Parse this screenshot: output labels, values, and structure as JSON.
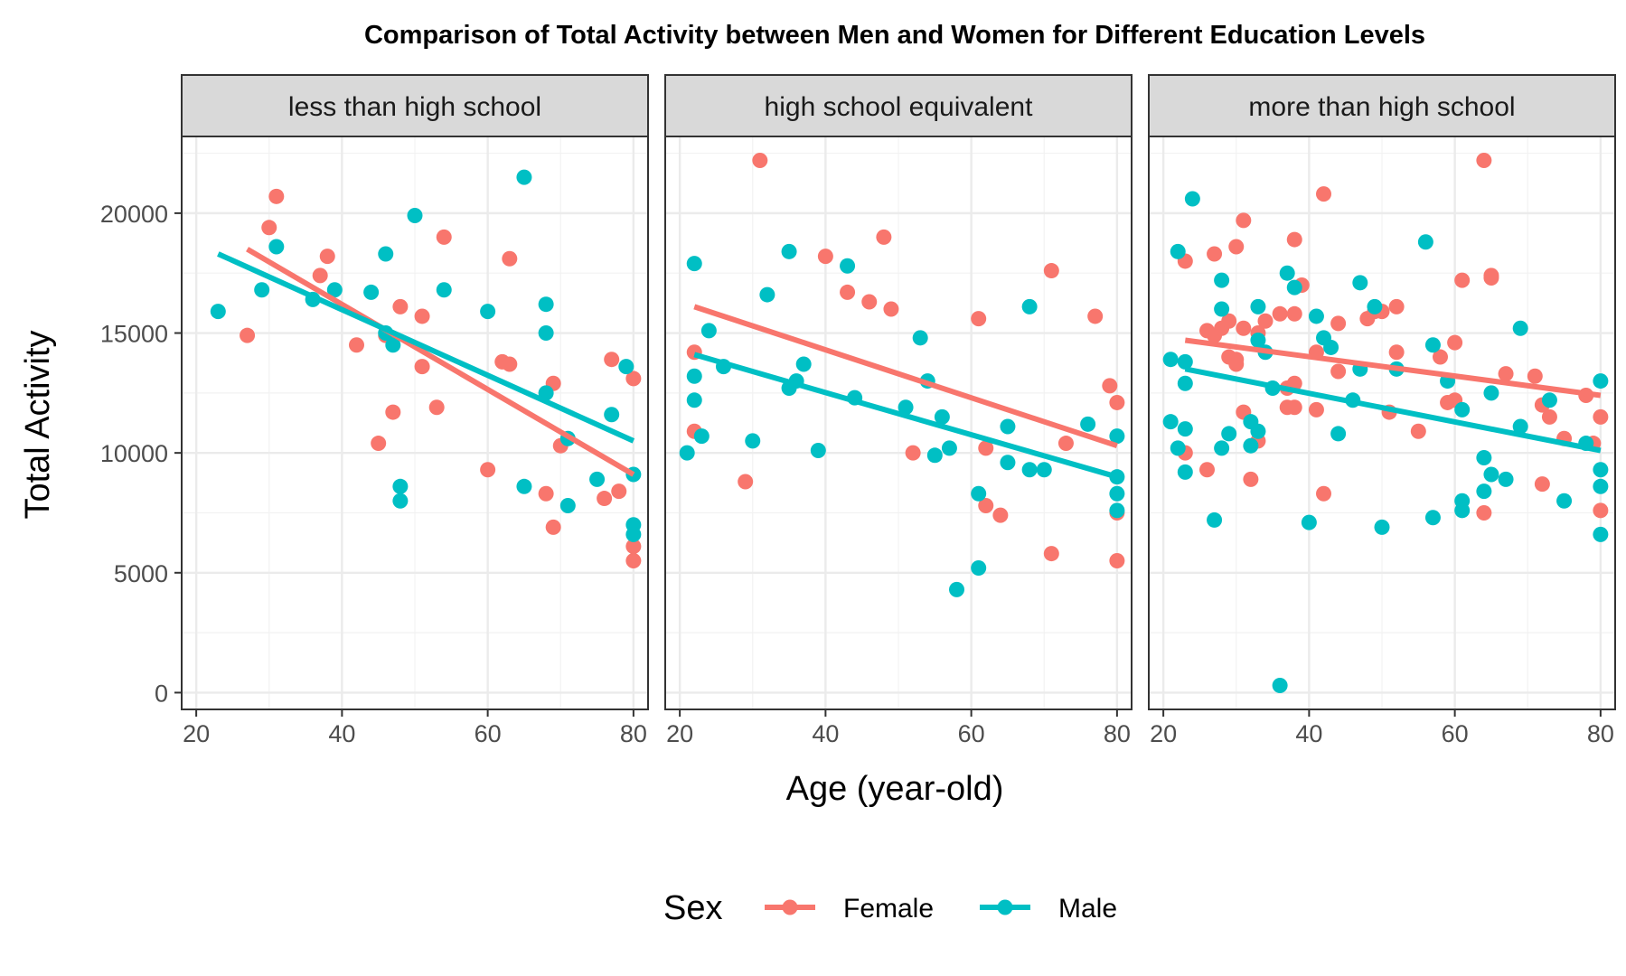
{
  "chart_data": {
    "type": "scatter",
    "title": "Comparison of Total Activity between Men and Women for Different Education Levels",
    "xlabel": "Age (year-old)",
    "ylabel": "Total Activity",
    "xlim": [
      18,
      82
    ],
    "ylim": [
      -700,
      23200
    ],
    "x_ticks": [
      20,
      40,
      60,
      80
    ],
    "y_ticks": [
      0,
      5000,
      10000,
      15000,
      20000
    ],
    "grid": true,
    "legend": {
      "title": "Sex",
      "position": "bottom",
      "entries": [
        {
          "name": "Female",
          "color": "#F8766D"
        },
        {
          "name": "Male",
          "color": "#00BFC4"
        }
      ]
    },
    "colors": {
      "Female": "#F8766D",
      "Male": "#00BFC4"
    },
    "panels": [
      {
        "label": "less than high school",
        "series": [
          {
            "name": "Female",
            "points": [
              [
                27,
                14900
              ],
              [
                30,
                19400
              ],
              [
                31,
                20700
              ],
              [
                37,
                17400
              ],
              [
                38,
                18200
              ],
              [
                42,
                14500
              ],
              [
                45,
                10400
              ],
              [
                46,
                14900
              ],
              [
                47,
                11700
              ],
              [
                48,
                16100
              ],
              [
                51,
                13600
              ],
              [
                51,
                15700
              ],
              [
                53,
                11900
              ],
              [
                54,
                19000
              ],
              [
                60,
                9300
              ],
              [
                62,
                13800
              ],
              [
                63,
                13700
              ],
              [
                63,
                18100
              ],
              [
                68,
                8300
              ],
              [
                69,
                12900
              ],
              [
                69,
                6900
              ],
              [
                70,
                10300
              ],
              [
                76,
                8100
              ],
              [
                77,
                13900
              ],
              [
                78,
                8400
              ],
              [
                80,
                13100
              ],
              [
                80,
                6100
              ],
              [
                80,
                5500
              ]
            ],
            "fit": [
              [
                27,
                18500
              ],
              [
                80,
                9100
              ]
            ]
          },
          {
            "name": "Male",
            "points": [
              [
                23,
                15900
              ],
              [
                29,
                16800
              ],
              [
                31,
                18600
              ],
              [
                36,
                16400
              ],
              [
                39,
                16800
              ],
              [
                44,
                16700
              ],
              [
                46,
                15000
              ],
              [
                46,
                18300
              ],
              [
                47,
                14500
              ],
              [
                48,
                8000
              ],
              [
                48,
                8600
              ],
              [
                50,
                19900
              ],
              [
                54,
                16800
              ],
              [
                60,
                15900
              ],
              [
                65,
                21500
              ],
              [
                65,
                8600
              ],
              [
                68,
                16200
              ],
              [
                68,
                15000
              ],
              [
                68,
                12500
              ],
              [
                71,
                10600
              ],
              [
                71,
                7800
              ],
              [
                75,
                8900
              ],
              [
                77,
                11600
              ],
              [
                79,
                13600
              ],
              [
                80,
                9100
              ],
              [
                80,
                7000
              ],
              [
                80,
                6600
              ]
            ],
            "fit": [
              [
                23,
                18300
              ],
              [
                80,
                10500
              ]
            ]
          }
        ]
      },
      {
        "label": "high school equivalent",
        "series": [
          {
            "name": "Female",
            "points": [
              [
                22,
                14200
              ],
              [
                22,
                10900
              ],
              [
                29,
                8800
              ],
              [
                31,
                22200
              ],
              [
                40,
                18200
              ],
              [
                43,
                16700
              ],
              [
                46,
                16300
              ],
              [
                48,
                19000
              ],
              [
                49,
                16000
              ],
              [
                52,
                10000
              ],
              [
                61,
                15600
              ],
              [
                62,
                10200
              ],
              [
                62,
                7800
              ],
              [
                64,
                7400
              ],
              [
                71,
                17600
              ],
              [
                71,
                5800
              ],
              [
                73,
                10400
              ],
              [
                77,
                15700
              ],
              [
                79,
                12800
              ],
              [
                80,
                12100
              ],
              [
                80,
                7500
              ],
              [
                80,
                5500
              ]
            ],
            "fit": [
              [
                22,
                16100
              ],
              [
                80,
                10300
              ]
            ]
          },
          {
            "name": "Male",
            "points": [
              [
                21,
                10000
              ],
              [
                22,
                17900
              ],
              [
                22,
                13200
              ],
              [
                22,
                12200
              ],
              [
                23,
                10700
              ],
              [
                24,
                15100
              ],
              [
                26,
                13600
              ],
              [
                30,
                10500
              ],
              [
                32,
                16600
              ],
              [
                35,
                18400
              ],
              [
                35,
                12700
              ],
              [
                36,
                13000
              ],
              [
                37,
                13700
              ],
              [
                39,
                10100
              ],
              [
                43,
                17800
              ],
              [
                44,
                12300
              ],
              [
                51,
                11900
              ],
              [
                53,
                14800
              ],
              [
                54,
                13000
              ],
              [
                55,
                9900
              ],
              [
                56,
                11500
              ],
              [
                57,
                10200
              ],
              [
                58,
                4300
              ],
              [
                61,
                5200
              ],
              [
                61,
                8300
              ],
              [
                65,
                11100
              ],
              [
                65,
                9600
              ],
              [
                68,
                9300
              ],
              [
                68,
                16100
              ],
              [
                70,
                9300
              ],
              [
                76,
                11200
              ],
              [
                80,
                10700
              ],
              [
                80,
                9000
              ],
              [
                80,
                8300
              ],
              [
                80,
                7600
              ]
            ],
            "fit": [
              [
                22,
                14100
              ],
              [
                80,
                9000
              ]
            ]
          }
        ]
      },
      {
        "label": "more than high school",
        "series": [
          {
            "name": "Female",
            "points": [
              [
                23,
                18000
              ],
              [
                23,
                10000
              ],
              [
                26,
                9300
              ],
              [
                26,
                15100
              ],
              [
                27,
                18300
              ],
              [
                27,
                14900
              ],
              [
                28,
                15200
              ],
              [
                29,
                15500
              ],
              [
                29,
                14000
              ],
              [
                30,
                18600
              ],
              [
                30,
                13900
              ],
              [
                30,
                13700
              ],
              [
                31,
                19700
              ],
              [
                31,
                11700
              ],
              [
                31,
                15200
              ],
              [
                32,
                8900
              ],
              [
                33,
                15000
              ],
              [
                33,
                10500
              ],
              [
                34,
                15500
              ],
              [
                36,
                15800
              ],
              [
                37,
                12700
              ],
              [
                37,
                11900
              ],
              [
                38,
                18900
              ],
              [
                38,
                15800
              ],
              [
                38,
                12900
              ],
              [
                38,
                11900
              ],
              [
                39,
                17000
              ],
              [
                41,
                14200
              ],
              [
                41,
                11800
              ],
              [
                42,
                20800
              ],
              [
                42,
                8300
              ],
              [
                44,
                15400
              ],
              [
                44,
                13400
              ],
              [
                48,
                15600
              ],
              [
                49,
                15900
              ],
              [
                50,
                15900
              ],
              [
                51,
                11700
              ],
              [
                52,
                16100
              ],
              [
                52,
                14200
              ],
              [
                55,
                10900
              ],
              [
                58,
                14000
              ],
              [
                59,
                12100
              ],
              [
                60,
                12200
              ],
              [
                60,
                14600
              ],
              [
                61,
                17200
              ],
              [
                64,
                22200
              ],
              [
                64,
                7500
              ],
              [
                65,
                17400
              ],
              [
                65,
                17300
              ],
              [
                67,
                13300
              ],
              [
                71,
                13200
              ],
              [
                72,
                8700
              ],
              [
                72,
                12000
              ],
              [
                73,
                11500
              ],
              [
                75,
                10600
              ],
              [
                78,
                12400
              ],
              [
                79,
                10400
              ],
              [
                80,
                11500
              ],
              [
                80,
                7600
              ]
            ],
            "fit": [
              [
                23,
                14700
              ],
              [
                80,
                12400
              ]
            ]
          },
          {
            "name": "Male",
            "points": [
              [
                21,
                13900
              ],
              [
                21,
                11300
              ],
              [
                22,
                18400
              ],
              [
                22,
                10200
              ],
              [
                23,
                13800
              ],
              [
                23,
                12900
              ],
              [
                23,
                11000
              ],
              [
                23,
                9200
              ],
              [
                24,
                20600
              ],
              [
                27,
                7200
              ],
              [
                28,
                17200
              ],
              [
                28,
                16000
              ],
              [
                28,
                10200
              ],
              [
                29,
                10800
              ],
              [
                32,
                11300
              ],
              [
                32,
                10300
              ],
              [
                33,
                16100
              ],
              [
                33,
                14700
              ],
              [
                33,
                10900
              ],
              [
                34,
                14200
              ],
              [
                35,
                12700
              ],
              [
                36,
                300
              ],
              [
                37,
                17500
              ],
              [
                38,
                16900
              ],
              [
                40,
                7100
              ],
              [
                41,
                15700
              ],
              [
                42,
                14800
              ],
              [
                43,
                14400
              ],
              [
                44,
                10800
              ],
              [
                46,
                12200
              ],
              [
                47,
                17100
              ],
              [
                47,
                13500
              ],
              [
                49,
                16100
              ],
              [
                50,
                6900
              ],
              [
                52,
                13500
              ],
              [
                56,
                18800
              ],
              [
                57,
                14500
              ],
              [
                57,
                7300
              ],
              [
                59,
                13000
              ],
              [
                61,
                11800
              ],
              [
                61,
                8000
              ],
              [
                61,
                7600
              ],
              [
                64,
                9800
              ],
              [
                64,
                8400
              ],
              [
                65,
                12500
              ],
              [
                65,
                9100
              ],
              [
                67,
                8900
              ],
              [
                69,
                15200
              ],
              [
                69,
                11100
              ],
              [
                73,
                12200
              ],
              [
                75,
                8000
              ],
              [
                78,
                10400
              ],
              [
                80,
                13000
              ],
              [
                80,
                9300
              ],
              [
                80,
                8600
              ],
              [
                80,
                6600
              ]
            ],
            "fit": [
              [
                23,
                13500
              ],
              [
                80,
                10100
              ]
            ]
          }
        ]
      }
    ]
  }
}
